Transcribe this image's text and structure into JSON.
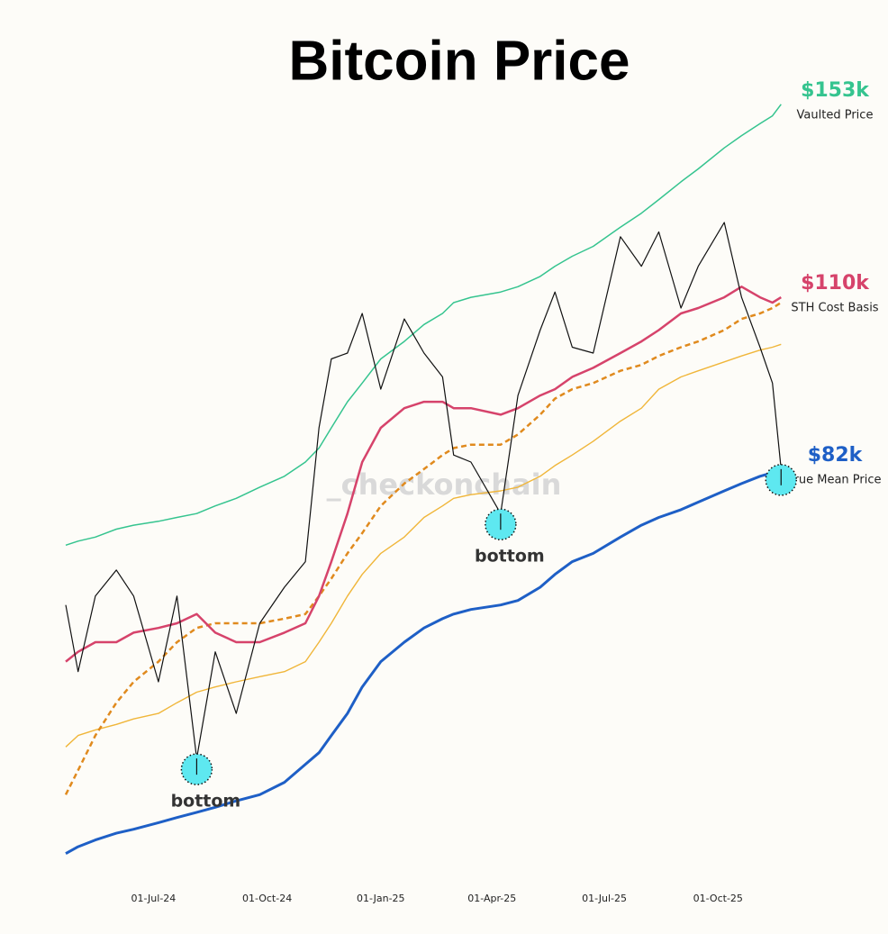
{
  "chart_data": {
    "type": "line",
    "title": "Bitcoin Price",
    "watermark": "_checkonchain",
    "log_y": true,
    "background": "#fdfcf8",
    "xlim": [
      "2024-04-21",
      "2025-11-23"
    ],
    "ylim": [
      41,
      157
    ],
    "xticks": [
      {
        "value": "2024-07-01",
        "label": "01-Jul-24"
      },
      {
        "value": "2024-10-01",
        "label": "01-Oct-24"
      },
      {
        "value": "2025-01-01",
        "label": "01-Jan-25"
      },
      {
        "value": "2025-04-01",
        "label": "01-Apr-25"
      },
      {
        "value": "2025-07-01",
        "label": "01-Jul-25"
      },
      {
        "value": "2025-10-01",
        "label": "01-Oct-25"
      }
    ],
    "x": [
      "2024-04-21",
      "2024-05-01",
      "2024-05-15",
      "2024-06-01",
      "2024-06-15",
      "2024-07-05",
      "2024-07-20",
      "2024-08-05",
      "2024-08-20",
      "2024-09-06",
      "2024-09-25",
      "2024-10-15",
      "2024-11-01",
      "2024-11-12",
      "2024-11-22",
      "2024-12-05",
      "2024-12-17",
      "2025-01-01",
      "2025-01-20",
      "2025-02-05",
      "2025-02-20",
      "2025-03-01",
      "2025-03-15",
      "2025-04-08",
      "2025-04-22",
      "2025-05-10",
      "2025-05-22",
      "2025-06-05",
      "2025-06-22",
      "2025-07-14",
      "2025-07-31",
      "2025-08-14",
      "2025-09-01",
      "2025-09-15",
      "2025-10-06",
      "2025-10-20",
      "2025-11-04",
      "2025-11-14",
      "2025-11-21"
    ],
    "series": [
      {
        "name": "Vaulted Price",
        "color": "#35c48f",
        "values": [
          72,
          72.5,
          73,
          74,
          74.5,
          75,
          75.5,
          76,
          77,
          78,
          79.5,
          81,
          83,
          85,
          88,
          92,
          95,
          99,
          102,
          105,
          107,
          109,
          110,
          111,
          112,
          114,
          116,
          118,
          120,
          124,
          127,
          130,
          134,
          137,
          142,
          145,
          148,
          150,
          153
        ],
        "value_labels": [
          null,
          null,
          null,
          null,
          null,
          null,
          null,
          null,
          null,
          null,
          null,
          null,
          null,
          null,
          null,
          null,
          null,
          null,
          null,
          null,
          null,
          null,
          null,
          null,
          null,
          null,
          null,
          null,
          null,
          null,
          null,
          null,
          null,
          null,
          null,
          null,
          null,
          null,
          "$153k"
        ]
      },
      {
        "name": "True Mean Price",
        "color": "#1e5fc6",
        "values": [
          42.5,
          43,
          43.5,
          44,
          44.3,
          44.8,
          45.2,
          45.6,
          46,
          46.5,
          47,
          48,
          49.5,
          50.5,
          52,
          54,
          56.5,
          59,
          61,
          62.5,
          63.5,
          64,
          64.5,
          65,
          65.5,
          67,
          68.5,
          70,
          71,
          73,
          74.5,
          75.5,
          76.5,
          77.5,
          79,
          80,
          81,
          81.5,
          82
        ],
        "value_labels": [
          null,
          null,
          null,
          null,
          null,
          null,
          null,
          null,
          null,
          null,
          null,
          null,
          null,
          null,
          null,
          null,
          null,
          null,
          null,
          null,
          null,
          null,
          null,
          null,
          null,
          null,
          null,
          null,
          null,
          null,
          null,
          null,
          null,
          null,
          null,
          null,
          null,
          null,
          "$82k"
        ]
      },
      {
        "color": "#f0b63a",
        "values": [
          51,
          52,
          52.5,
          53,
          53.5,
          54,
          55,
          56,
          56.5,
          57,
          57.5,
          58,
          59,
          61,
          63,
          66,
          68.5,
          71,
          73,
          75.5,
          77,
          78,
          78.5,
          79,
          79.5,
          81,
          82.5,
          84,
          86,
          89,
          91,
          94,
          96,
          97,
          98.5,
          99.5,
          100.5,
          101,
          101.5
        ]
      },
      {
        "color": "#e08a1e",
        "dashed": true,
        "values": [
          47,
          49,
          52,
          55,
          57,
          59,
          61,
          62.5,
          63,
          63,
          63,
          63.5,
          64,
          66,
          68,
          71,
          73.5,
          77,
          80,
          82,
          84,
          85,
          85.5,
          85.5,
          87,
          90,
          92.5,
          94,
          95,
          97,
          98,
          99.5,
          101,
          102,
          104,
          106,
          107,
          108,
          109
        ]
      },
      {
        "name": "STH Cost Basis",
        "color": "#d6436b",
        "values": [
          59,
          60,
          61,
          61,
          62,
          62.5,
          63,
          64,
          62,
          61,
          61,
          62,
          63,
          66,
          70,
          76,
          83,
          88,
          91,
          92,
          92,
          91,
          91,
          90,
          91,
          93,
          94,
          96,
          97.5,
          100,
          102,
          104,
          107,
          108,
          110,
          112,
          110,
          109,
          110
        ],
        "value_labels": [
          null,
          null,
          null,
          null,
          null,
          null,
          null,
          null,
          null,
          null,
          null,
          null,
          null,
          null,
          null,
          null,
          null,
          null,
          null,
          null,
          null,
          null,
          null,
          null,
          null,
          null,
          null,
          null,
          null,
          null,
          null,
          null,
          null,
          null,
          null,
          null,
          null,
          null,
          "$110k"
        ]
      },
      {
        "color": "#111111",
        "values": [
          65,
          58,
          66,
          69,
          66,
          57,
          66,
          50,
          60,
          54,
          63,
          67,
          70,
          88,
          99,
          100,
          107,
          94,
          106,
          100,
          96,
          84,
          83,
          76,
          93,
          104,
          111,
          101,
          100,
          122,
          116,
          123,
          108,
          116,
          125,
          110,
          101,
          95,
          82
        ]
      }
    ],
    "annotations": [
      {
        "text": "bottom",
        "x": "2024-08-05"
      },
      {
        "text": "bottom",
        "x": "2025-04-08"
      },
      {
        "x": "2025-11-21"
      }
    ],
    "marker_color": "#5ee8f0"
  }
}
